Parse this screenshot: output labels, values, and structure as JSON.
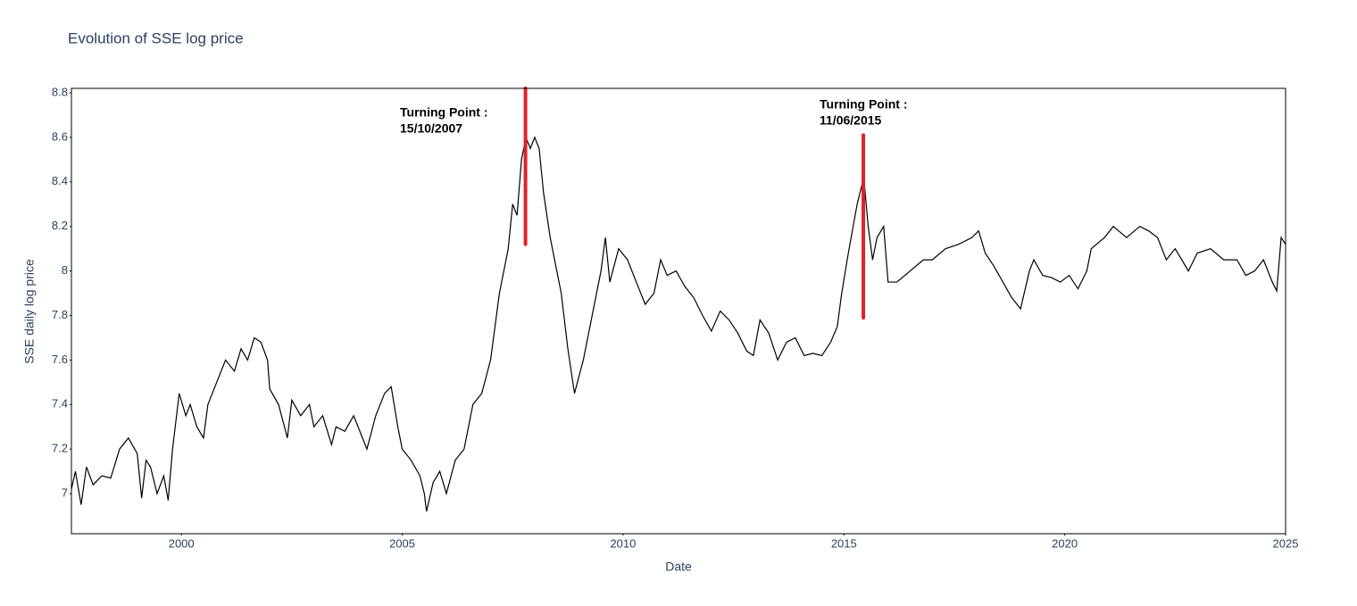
{
  "chart_data": {
    "type": "line",
    "title": "Evolution of SSE log price",
    "x_label": "Date",
    "y_label": "SSE daily log price",
    "color": "#000000",
    "xlim": [
      1997.51,
      2025
    ],
    "xticks": [
      2000,
      2005,
      2010,
      2015,
      2020,
      2025
    ],
    "ylim": [
      6.82,
      8.82
    ],
    "yticks": [
      7,
      7.2,
      7.4,
      7.6,
      7.8,
      8,
      8.2,
      8.4,
      8.6,
      8.8
    ],
    "grid": false,
    "x": [
      1997.51,
      1997.6,
      1997.73,
      1997.85,
      1998.0,
      1998.2,
      1998.4,
      1998.6,
      1998.8,
      1999.0,
      1999.1,
      1999.2,
      1999.3,
      1999.45,
      1999.6,
      1999.7,
      1999.8,
      1999.95,
      2000.1,
      2000.2,
      2000.35,
      2000.5,
      2000.6,
      2000.8,
      2001.0,
      2001.2,
      2001.35,
      2001.5,
      2001.65,
      2001.8,
      2001.95,
      2002.0,
      2002.2,
      2002.4,
      2002.5,
      2002.7,
      2002.9,
      2003.0,
      2003.2,
      2003.4,
      2003.5,
      2003.7,
      2003.9,
      2004.0,
      2004.2,
      2004.4,
      2004.6,
      2004.75,
      2004.9,
      2005.0,
      2005.2,
      2005.4,
      2005.5,
      2005.55,
      2005.7,
      2005.85,
      2006.0,
      2006.2,
      2006.4,
      2006.6,
      2006.8,
      2007.0,
      2007.2,
      2007.4,
      2007.5,
      2007.6,
      2007.7,
      2007.8,
      2007.9,
      2008.0,
      2008.1,
      2008.2,
      2008.35,
      2008.5,
      2008.6,
      2008.75,
      2008.9,
      2009.1,
      2009.3,
      2009.5,
      2009.6,
      2009.7,
      2009.9,
      2010.1,
      2010.3,
      2010.5,
      2010.7,
      2010.85,
      2011.0,
      2011.2,
      2011.4,
      2011.6,
      2011.8,
      2012.0,
      2012.2,
      2012.4,
      2012.6,
      2012.8,
      2012.95,
      2013.1,
      2013.3,
      2013.5,
      2013.7,
      2013.9,
      2014.1,
      2014.3,
      2014.5,
      2014.7,
      2014.85,
      2014.95,
      2015.1,
      2015.3,
      2015.45,
      2015.55,
      2015.65,
      2015.75,
      2015.9,
      2016.0,
      2016.2,
      2016.5,
      2016.8,
      2017.0,
      2017.3,
      2017.6,
      2017.9,
      2018.05,
      2018.2,
      2018.4,
      2018.6,
      2018.8,
      2019.0,
      2019.2,
      2019.3,
      2019.5,
      2019.7,
      2019.9,
      2020.1,
      2020.3,
      2020.5,
      2020.6,
      2020.9,
      2021.1,
      2021.4,
      2021.7,
      2021.9,
      2022.1,
      2022.3,
      2022.5,
      2022.8,
      2023.0,
      2023.3,
      2023.6,
      2023.9,
      2024.1,
      2024.3,
      2024.5,
      2024.7,
      2024.8,
      2024.9,
      2025.0
    ],
    "values": [
      7.02,
      7.1,
      6.95,
      7.12,
      7.04,
      7.08,
      7.07,
      7.2,
      7.25,
      7.18,
      6.98,
      7.15,
      7.12,
      7.0,
      7.08,
      6.97,
      7.2,
      7.45,
      7.35,
      7.4,
      7.3,
      7.25,
      7.4,
      7.5,
      7.6,
      7.55,
      7.65,
      7.6,
      7.7,
      7.68,
      7.6,
      7.47,
      7.4,
      7.25,
      7.42,
      7.35,
      7.4,
      7.3,
      7.35,
      7.22,
      7.3,
      7.28,
      7.35,
      7.3,
      7.2,
      7.35,
      7.45,
      7.48,
      7.3,
      7.2,
      7.15,
      7.08,
      7.0,
      6.92,
      7.05,
      7.1,
      7.0,
      7.15,
      7.2,
      7.4,
      7.45,
      7.6,
      7.9,
      8.1,
      8.3,
      8.25,
      8.5,
      8.6,
      8.55,
      8.6,
      8.55,
      8.35,
      8.15,
      8.0,
      7.9,
      7.65,
      7.45,
      7.6,
      7.8,
      8.0,
      8.15,
      7.95,
      8.1,
      8.05,
      7.95,
      7.85,
      7.9,
      8.05,
      7.98,
      8.0,
      7.93,
      7.88,
      7.8,
      7.73,
      7.82,
      7.78,
      7.72,
      7.64,
      7.62,
      7.78,
      7.72,
      7.6,
      7.68,
      7.7,
      7.62,
      7.63,
      7.62,
      7.68,
      7.75,
      7.9,
      8.08,
      8.3,
      8.42,
      8.2,
      8.05,
      8.15,
      8.2,
      7.95,
      7.95,
      8.0,
      8.05,
      8.05,
      8.1,
      8.12,
      8.15,
      8.18,
      8.08,
      8.02,
      7.95,
      7.88,
      7.83,
      8.0,
      8.05,
      7.98,
      7.97,
      7.95,
      7.98,
      7.92,
      8.0,
      8.1,
      8.15,
      8.2,
      8.15,
      8.2,
      8.18,
      8.15,
      8.05,
      8.1,
      8.0,
      8.08,
      8.1,
      8.05,
      8.05,
      7.98,
      8.0,
      8.05,
      7.95,
      7.91,
      8.15,
      8.12
    ],
    "turning_points": [
      {
        "label": [
          "Turning Point :",
          "15/10/2007"
        ],
        "x": 2007.79,
        "y": [
          8.82,
          8.12
        ],
        "color": "#e0202a"
      },
      {
        "label": [
          "Turning Point :",
          "11/06/2015"
        ],
        "x": 2015.44,
        "y": [
          8.61,
          7.79
        ],
        "color": "#e0202a"
      }
    ]
  }
}
